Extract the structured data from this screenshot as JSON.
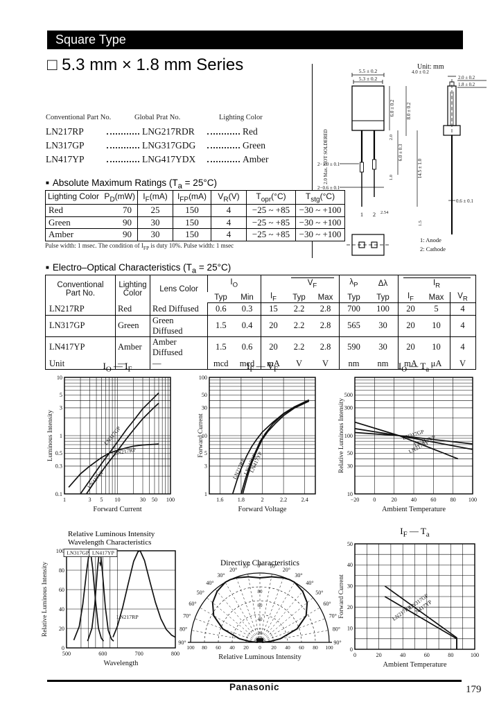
{
  "page": {
    "header_bar": "Square Type",
    "title": "□ 5.3 mm × 1.8 mm Series",
    "footer_brand": "Panasonic",
    "page_number": "179"
  },
  "part_list": {
    "headers": [
      "Conventional Part No.",
      "Global Prat No.",
      "Lighting Color"
    ],
    "rows": [
      {
        "conventional": "LN217RP",
        "global": "LNG217RDR",
        "color": "Red"
      },
      {
        "conventional": "LN317GP",
        "global": "LNG317GDG",
        "color": "Green"
      },
      {
        "conventional": "LN417YP",
        "global": "LNG417YDX",
        "color": "Amber"
      }
    ]
  },
  "mech": {
    "unit": "Unit: mm",
    "note_vertical": "2.0 Max. NOT SOLDERED",
    "dim_55": "5.5 ± 0.2",
    "dim_53": "5.3 ± 0.2",
    "dim_60": "6.0 ± 0.2",
    "dim_80": "8.0 ± 0.2",
    "dim_2": "2.0",
    "dim_603": "6.0 ± 0.3",
    "dim_1": "1.0",
    "dim_145": "14.5 ± 1.0",
    "dim_lead_w": "2−1.0 ± 0.1",
    "dim_lead_w2": "2−0.6 ± 0.1",
    "pitch": "2.54",
    "dim_15": "1.5",
    "sv_40": "4.0 ± 0.2",
    "sv_20": "2.0 ± 0.2",
    "sv_18": "1.8 ± 0.2",
    "sv_06": "0.6 ± 0.1",
    "pin_1": "1",
    "pin_2": "2",
    "anode": "1: Anode",
    "cathode": "2: Cathode"
  },
  "abs_max": {
    "bullet": "■",
    "section_title_html": "Absolute Maximum Ratings (T<sub>a</sub> = 25°C)",
    "headers_html": [
      "Lighting Color",
      "P<sub>D</sub>(mW)",
      "I<sub>F</sub>(mA)",
      "I<sub>FP</sub>(mA)",
      "V<sub>R</sub>(V)",
      "T<sub>opr</sub>(°C)",
      "T<sub>stg</sub>(°C)"
    ],
    "rows": [
      [
        "Red",
        "70",
        "25",
        "150",
        "4",
        "−25 ~ +85",
        "−30 ~ +100"
      ],
      [
        "Green",
        "90",
        "30",
        "150",
        "4",
        "−25 ~ +85",
        "−30 ~ +100"
      ],
      [
        "Amber",
        "90",
        "30",
        "150",
        "4",
        "−25 ~ +85",
        "−30 ~ +100"
      ]
    ],
    "footnote_html": "Pulse width: 1 msec. The condition of I<sub>FP</sub> is duty 10%. Pulse width: 1 msec"
  },
  "eo": {
    "bullet": "■",
    "section_title_html": "Electro–Optical Characteristics (T<sub>a</sub> = 25°C)",
    "head_part_html": "Conventional<br>Part No.",
    "head_lighting_html": "Lighting<br>Color",
    "head_lens_html": "Lens Color",
    "head_io_html": "I<sub>O</sub>",
    "head_vf_html": "V<sub>F</sub>",
    "head_lp_html": "λ<sub>P</sub>",
    "head_dl_html": "Δλ",
    "head_ir_html": "I<sub>R</sub>",
    "sub_headers_html": [
      "Typ",
      "Min",
      "I<sub>F</sub>",
      "Typ",
      "Max",
      "Typ",
      "Typ",
      "I<sub>F</sub>",
      "Max",
      "V<sub>R</sub>"
    ],
    "rows": [
      [
        "LN217RP",
        "Red",
        "Red Diffused",
        "0.6",
        "0.3",
        "15",
        "2.2",
        "2.8",
        "700",
        "100",
        "20",
        "5",
        "4"
      ],
      [
        "LN317GP",
        "Green",
        "Green Diffused",
        "1.5",
        "0.4",
        "20",
        "2.2",
        "2.8",
        "565",
        "30",
        "20",
        "10",
        "4"
      ],
      [
        "LN417YP",
        "Amber",
        "Amber Diffused",
        "1.5",
        "0.6",
        "20",
        "2.2",
        "2.8",
        "590",
        "30",
        "20",
        "10",
        "4"
      ]
    ],
    "unit_row": [
      "Unit",
      "—",
      "—",
      "mcd",
      "mcd",
      "mA",
      "V",
      "V",
      "nm",
      "nm",
      "mA",
      "μA",
      "V"
    ]
  },
  "chart_data": [
    {
      "id": "io-if",
      "type": "line",
      "title_html": "I<sub>O</sub> — I<sub>F</sub>",
      "xlabel": "Forward Current",
      "ylabel": "Luminous Intensity",
      "xscale": "log",
      "yscale": "log",
      "xlim": [
        1,
        100
      ],
      "ylim": [
        0.1,
        10
      ],
      "xticks": [
        1,
        3,
        5,
        10,
        30,
        50,
        100
      ],
      "yticks": [
        10,
        5,
        3,
        1,
        0.5,
        0.3,
        0.1
      ],
      "grid": "on",
      "series": [
        {
          "name": "LN317GP",
          "points": [
            [
              2,
              0.1
            ],
            [
              3,
              0.17
            ],
            [
              5,
              0.33
            ],
            [
              7,
              0.5
            ],
            [
              10,
              0.78
            ],
            [
              15,
              1.3
            ],
            [
              20,
              1.8
            ],
            [
              30,
              2.9
            ],
            [
              50,
              4.6
            ],
            [
              60,
              5.4
            ]
          ],
          "labels": [
            {
              "text": "LN317GP",
              "x": 8.5,
              "y": 0.95,
              "rot": -50
            }
          ]
        },
        {
          "name": "LN417YP",
          "points": [
            [
              2.6,
              0.1
            ],
            [
              4,
              0.18
            ],
            [
              6,
              0.3
            ],
            [
              10,
              0.55
            ],
            [
              15,
              0.9
            ],
            [
              20,
              1.25
            ],
            [
              30,
              1.95
            ],
            [
              50,
              3.1
            ],
            [
              60,
              3.6
            ]
          ],
          "labels": [
            {
              "text": "LN417YP",
              "x": 4.1,
              "y": 0.17,
              "rot": -50
            }
          ]
        },
        {
          "name": "LN217RP",
          "points": [
            [
              1.2,
              0.13
            ],
            [
              2,
              0.22
            ],
            [
              3,
              0.3
            ],
            [
              5,
              0.42
            ],
            [
              7,
              0.5
            ],
            [
              10,
              0.56
            ],
            [
              15,
              0.62
            ],
            [
              20,
              0.66
            ],
            [
              30,
              0.69
            ],
            [
              50,
              0.71
            ],
            [
              60,
              0.72
            ]
          ],
          "labels": [
            {
              "text": "LN217RP",
              "x": 14,
              "y": 0.5,
              "rot": -10
            }
          ]
        }
      ]
    },
    {
      "id": "if-vf",
      "type": "line",
      "title_html": "I<sub>F</sub> — V<sub>F</sub>",
      "xlabel": "Forward Voltage",
      "ylabel": "Forward Current",
      "xscale": "linear",
      "yscale": "log",
      "xlim": [
        1.5,
        2.5
      ],
      "ylim": [
        1,
        100
      ],
      "xticks": [
        1.6,
        1.8,
        2.0,
        2.2,
        2.4
      ],
      "yticks": [
        100,
        50,
        30,
        10,
        5,
        3,
        1
      ],
      "xgridlines": [
        1.6,
        1.8,
        2.0,
        2.2,
        2.4
      ],
      "grid": "on",
      "series": [
        {
          "name": "LN217RP",
          "points": [
            [
              1.72,
              1
            ],
            [
              1.76,
              1.7
            ],
            [
              1.8,
              2.7
            ],
            [
              1.85,
              4.4
            ],
            [
              1.9,
              6.5
            ],
            [
              1.95,
              8.8
            ],
            [
              2.0,
              11.5
            ],
            [
              2.1,
              17
            ],
            [
              2.2,
              24
            ],
            [
              2.3,
              31
            ],
            [
              2.44,
              41
            ]
          ],
          "labels": [
            {
              "text": "LN217RP",
              "x": 1.795,
              "y": 2.6,
              "rot": -65
            }
          ]
        },
        {
          "name": "LN317GP",
          "points": [
            [
              1.8,
              1
            ],
            [
              1.84,
              1.8
            ],
            [
              1.88,
              3
            ],
            [
              1.93,
              5
            ],
            [
              1.98,
              8
            ],
            [
              2.03,
              11
            ],
            [
              2.1,
              16
            ],
            [
              2.2,
              23.5
            ],
            [
              2.3,
              30.5
            ],
            [
              2.44,
              40
            ]
          ],
          "labels": [
            {
              "text": "LN317GP",
              "x": 1.9,
              "y": 3.1,
              "rot": -65
            }
          ]
        },
        {
          "name": "LN417YP",
          "points": [
            [
              1.815,
              1
            ],
            [
              1.86,
              2
            ],
            [
              1.9,
              3.4
            ],
            [
              1.95,
              5.6
            ],
            [
              2.0,
              8.6
            ],
            [
              2.05,
              11.6
            ],
            [
              2.12,
              16
            ],
            [
              2.2,
              22
            ],
            [
              2.3,
              29.5
            ],
            [
              2.44,
              39
            ]
          ],
          "labels": [
            {
              "text": "LN417YP",
              "x": 1.955,
              "y": 3.4,
              "rot": -65
            }
          ]
        }
      ]
    },
    {
      "id": "io-ta",
      "type": "line",
      "title_html": "I<sub>O</sub> — T<sub>a</sub>",
      "xlabel": "Ambient Temperature",
      "ylabel": "Relative Luminous Intensity",
      "xscale": "linear",
      "yscale": "log",
      "xlim": [
        -20,
        100
      ],
      "ylim": [
        10,
        1000
      ],
      "xticks": [
        -20,
        0,
        20,
        40,
        60,
        80,
        100
      ],
      "yticks": [
        500,
        300,
        100,
        50,
        30,
        10
      ],
      "xgrid": 20,
      "grid": "on",
      "series": [
        {
          "name": "LN317GP",
          "points": [
            [
              -20,
              113
            ],
            [
              25,
              100
            ],
            [
              100,
              72
            ]
          ],
          "labels": [
            {
              "text": "LN317GP",
              "x": 40,
              "y": 97,
              "rot": -18
            }
          ]
        },
        {
          "name": "LN417YP",
          "points": [
            [
              -20,
              132
            ],
            [
              25,
              100
            ],
            [
              100,
              58
            ]
          ],
          "labels": [
            {
              "text": "LN417YP",
              "x": 52,
              "y": 76,
              "rot": -22
            }
          ]
        },
        {
          "name": "LN217RP",
          "points": [
            [
              -20,
              170
            ],
            [
              25,
              100
            ],
            [
              85,
              40
            ]
          ],
          "labels": [
            {
              "text": "LN217RP",
              "x": 46,
              "y": 60,
              "rot": -28
            }
          ]
        }
      ]
    },
    {
      "id": "wavelength",
      "type": "line",
      "title_html": "Relative Luminous Intensity<br>Wavelength Characteristics",
      "xlabel": "Wavelength",
      "ylabel": "Relative Luminous Intensity",
      "xscale": "linear",
      "yscale": "linear",
      "xlim": [
        500,
        800
      ],
      "ylim": [
        0,
        100
      ],
      "xticks": [
        500,
        600,
        700,
        800
      ],
      "yticks": [
        0,
        20,
        40,
        60,
        80,
        100
      ],
      "xgridlines": [
        540,
        560,
        580,
        600,
        620,
        640
      ],
      "ygrid": 20,
      "grid": "on",
      "series": [
        {
          "name": "LN317GP",
          "peak_nm": 565,
          "points": [
            [
              520,
              8
            ],
            [
              535,
              22
            ],
            [
              545,
              45
            ],
            [
              555,
              78
            ],
            [
              562,
              97
            ],
            [
              566,
              100
            ],
            [
              572,
              82
            ],
            [
              580,
              48
            ],
            [
              588,
              20
            ],
            [
              596,
              10
            ],
            [
              602,
              7
            ]
          ],
          "labels": [
            {
              "text": "LN317GP",
              "x": 531,
              "y": 96,
              "rot": 0,
              "boxed": true
            }
          ]
        },
        {
          "name": "LN417YP",
          "peak_nm": 590,
          "points": [
            [
              558,
              7
            ],
            [
              570,
              20
            ],
            [
              578,
              45
            ],
            [
              585,
              80
            ],
            [
              590,
              98
            ],
            [
              593,
              100
            ],
            [
              599,
              78
            ],
            [
              607,
              42
            ],
            [
              615,
              18
            ],
            [
              624,
              9
            ],
            [
              630,
              7
            ]
          ],
          "labels": [
            {
              "text": "LN417YP",
              "x": 601,
              "y": 96,
              "rot": 0,
              "boxed": true,
              "arrow_to": [
                593,
                84
              ]
            }
          ]
        },
        {
          "name": "LN217RP",
          "peak_nm": 700,
          "points": [
            [
              628,
              11
            ],
            [
              640,
              22
            ],
            [
              655,
              42
            ],
            [
              670,
              66
            ],
            [
              685,
              89
            ],
            [
              697,
              99
            ],
            [
              703,
              100
            ],
            [
              715,
              90
            ],
            [
              730,
              68
            ],
            [
              745,
              47
            ],
            [
              760,
              30
            ],
            [
              775,
              19
            ],
            [
              790,
              13
            ],
            [
              800,
              11
            ]
          ],
          "labels": [
            {
              "text": "LN217RP",
              "x": 668,
              "y": 30,
              "rot": 0
            }
          ]
        }
      ]
    },
    {
      "id": "directive",
      "type": "polar",
      "title_html": "Directive Characteristics",
      "axis_label": "Relative Luminous Intensity",
      "angle_ticks": [
        0,
        10,
        20,
        30,
        40,
        50,
        60,
        70,
        80,
        90
      ],
      "rings": [
        20,
        40,
        60,
        80,
        100
      ],
      "radial_labels": [
        100,
        80,
        60,
        40,
        20,
        0
      ],
      "inner_labels": [
        80,
        60,
        40,
        20
      ],
      "angles": [
        0,
        10,
        20,
        25,
        30,
        40,
        50,
        60,
        70,
        80,
        85,
        90
      ],
      "r": [
        93,
        96,
        99,
        100,
        100,
        96,
        89,
        77,
        57,
        30,
        15,
        3
      ]
    },
    {
      "id": "if-ta",
      "type": "line",
      "title_html": "I<sub>F</sub> — T<sub>a</sub>",
      "xlabel": "Ambient Temperature",
      "ylabel": "Forward Current",
      "xscale": "linear",
      "yscale": "linear",
      "xlim": [
        0,
        100
      ],
      "ylim": [
        0,
        50
      ],
      "xticks": [
        0,
        20,
        40,
        60,
        80,
        100
      ],
      "yticks": [
        0,
        10,
        20,
        30,
        40,
        50
      ],
      "xgrid": 10,
      "ygrid": 5,
      "grid": "on",
      "series": [
        {
          "name": "LN317GP / LN417YP",
          "points": [
            [
              25,
              30
            ],
            [
              85,
              5.5
            ],
            [
              85,
              0
            ]
          ],
          "labels": [
            {
              "text": "LN317GP",
              "x": 54,
              "y": 22,
              "rot": -36
            },
            {
              "text": "LN417YP",
              "x": 57,
              "y": 19,
              "rot": -36
            }
          ]
        },
        {
          "name": "LN217RP",
          "points": [
            [
              25,
              25
            ],
            [
              85,
              5
            ],
            [
              85,
              0
            ]
          ],
          "labels": [
            {
              "text": "LN217RP",
              "x": 40,
              "y": 16.5,
              "rot": -36
            }
          ]
        }
      ]
    }
  ]
}
